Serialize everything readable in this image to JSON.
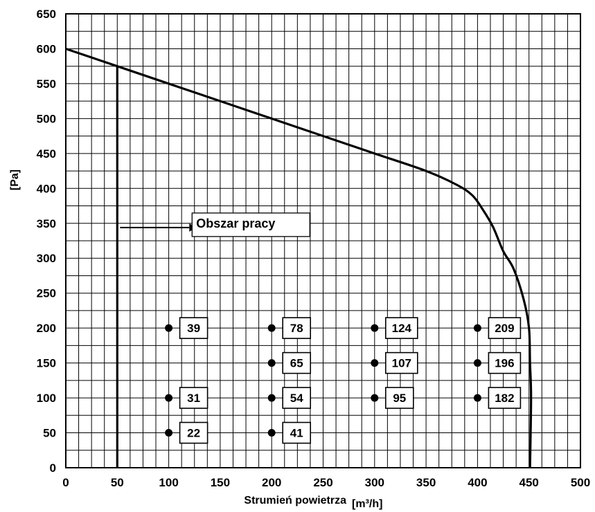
{
  "chart_data": {
    "type": "line",
    "xlabel": "Strumień powietrza",
    "xunit": "[m³/h]",
    "ylabel": "[Pa]",
    "xlim": [
      0,
      500
    ],
    "ylim": [
      0,
      650
    ],
    "grid": true,
    "x_ticks": [
      "0",
      "50",
      "100",
      "150",
      "200",
      "250",
      "300",
      "350",
      "400",
      "450",
      "500"
    ],
    "y_ticks": [
      "0",
      "50",
      "100",
      "150",
      "200",
      "250",
      "300",
      "350",
      "400",
      "450",
      "500",
      "550",
      "600",
      "650"
    ],
    "series": [
      {
        "x": [
          0,
          50,
          100,
          150,
          200,
          250,
          300,
          350,
          380,
          395,
          405,
          415,
          425,
          435,
          445,
          450,
          451,
          452,
          451
        ],
        "y": [
          600,
          575,
          550,
          525,
          500,
          475,
          450,
          425,
          405,
          390,
          370,
          345,
          310,
          285,
          240,
          200,
          150,
          100,
          0
        ]
      }
    ],
    "boundary": {
      "x": [
        50,
        50
      ],
      "y": [
        575,
        0
      ]
    },
    "annotation": {
      "text": "Obszar pracy",
      "x": 50,
      "y": 340
    },
    "points": [
      {
        "x": 100,
        "y": 200,
        "label": "39"
      },
      {
        "x": 100,
        "y": 100,
        "label": "31"
      },
      {
        "x": 100,
        "y": 50,
        "label": "22"
      },
      {
        "x": 200,
        "y": 200,
        "label": "78"
      },
      {
        "x": 200,
        "y": 150,
        "label": "65"
      },
      {
        "x": 200,
        "y": 100,
        "label": "54"
      },
      {
        "x": 200,
        "y": 50,
        "label": "41"
      },
      {
        "x": 300,
        "y": 200,
        "label": "124"
      },
      {
        "x": 300,
        "y": 150,
        "label": "107"
      },
      {
        "x": 300,
        "y": 100,
        "label": "95"
      },
      {
        "x": 400,
        "y": 200,
        "label": "209"
      },
      {
        "x": 400,
        "y": 150,
        "label": "196"
      },
      {
        "x": 400,
        "y": 100,
        "label": "182"
      }
    ]
  }
}
